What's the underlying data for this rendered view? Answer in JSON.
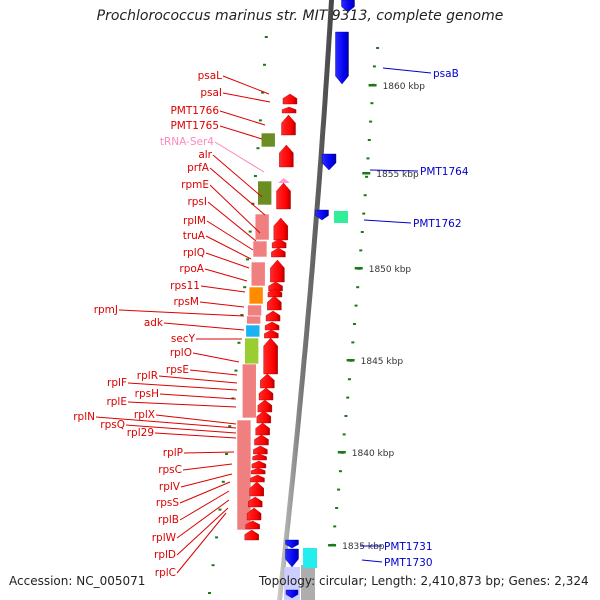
{
  "title": "Prochlorococcus marinus str. MIT 9313, complete genome",
  "footer": {
    "accession": "Accession: NC_005071",
    "summary": "Topology: circular; Length: 2,410,873 bp; Genes: 2,324"
  },
  "colors": {
    "forward_gene": "#ff0000",
    "reverse_gene": "#0000ff",
    "trna": "#ff9ed2",
    "label_forward": "#dd0000",
    "label_reverse": "#0000cc",
    "label_trna": "#ff88bb",
    "backbone": "#888888",
    "tick": "#1a7a1a",
    "cog_olive": "#6b8e23",
    "cog_salmon": "#f08080",
    "cog_orange": "#ff8c00",
    "cog_sky": "#1ab2f0",
    "cog_lime": "#9acd32",
    "cog_mint": "#33ee99",
    "cog_cyan": "#22eeee"
  },
  "scale_ticks": [
    {
      "label": "1860 kbp"
    },
    {
      "label": "1855 kbp"
    },
    {
      "label": "1850 kbp"
    },
    {
      "label": "1845 kbp"
    },
    {
      "label": "1840 kbp"
    },
    {
      "label": "1835 kbp"
    }
  ],
  "left_labels": [
    {
      "name": "psaL",
      "type": "forward"
    },
    {
      "name": "psaI",
      "type": "forward"
    },
    {
      "name": "PMT1766",
      "type": "forward"
    },
    {
      "name": "PMT1765",
      "type": "forward"
    },
    {
      "name": "tRNA-Ser4",
      "type": "trna"
    },
    {
      "name": "alr",
      "type": "forward"
    },
    {
      "name": "prfA",
      "type": "forward"
    },
    {
      "name": "rpmE",
      "type": "forward"
    },
    {
      "name": "rpsI",
      "type": "forward"
    },
    {
      "name": "rplM",
      "type": "forward"
    },
    {
      "name": "truA",
      "type": "forward"
    },
    {
      "name": "rplQ",
      "type": "forward"
    },
    {
      "name": "rpoA",
      "type": "forward"
    },
    {
      "name": "rps11",
      "type": "forward"
    },
    {
      "name": "rpsM",
      "type": "forward"
    },
    {
      "name": "rpmJ",
      "type": "forward"
    },
    {
      "name": "adk",
      "type": "forward"
    },
    {
      "name": "secY",
      "type": "forward"
    },
    {
      "name": "rplO",
      "type": "forward"
    },
    {
      "name": "rpsE",
      "type": "forward"
    },
    {
      "name": "rplR",
      "type": "forward"
    },
    {
      "name": "rplF",
      "type": "forward"
    },
    {
      "name": "rpsH",
      "type": "forward"
    },
    {
      "name": "rplE",
      "type": "forward"
    },
    {
      "name": "rplX",
      "type": "forward"
    },
    {
      "name": "rplN",
      "type": "forward"
    },
    {
      "name": "rpsQ",
      "type": "forward"
    },
    {
      "name": "rpl29",
      "type": "forward"
    },
    {
      "name": "rplP",
      "type": "forward"
    },
    {
      "name": "rpsC",
      "type": "forward"
    },
    {
      "name": "rplV",
      "type": "forward"
    },
    {
      "name": "rpsS",
      "type": "forward"
    },
    {
      "name": "rplB",
      "type": "forward"
    },
    {
      "name": "rplW",
      "type": "forward"
    },
    {
      "name": "rplD",
      "type": "forward"
    },
    {
      "name": "rplC",
      "type": "forward"
    }
  ],
  "right_labels": [
    {
      "name": "psaB",
      "type": "reverse"
    },
    {
      "name": "PMT1764",
      "type": "reverse"
    },
    {
      "name": "PMT1762",
      "type": "reverse"
    },
    {
      "name": "PMT1731",
      "type": "reverse"
    },
    {
      "name": "PMT1730",
      "type": "reverse"
    }
  ]
}
